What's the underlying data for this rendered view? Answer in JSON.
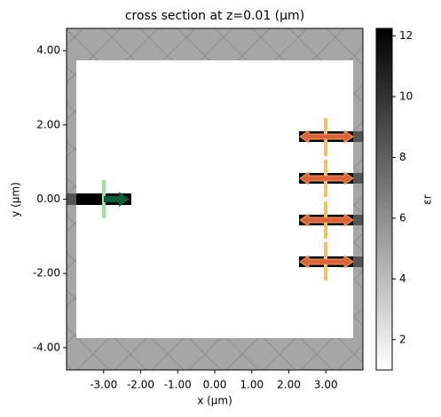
{
  "chart_data": {
    "type": "structure",
    "title": "cross section at z=0.01 (μm)",
    "xlabel": "x (μm)",
    "ylabel": "y (μm)",
    "xlim": [
      -4.0,
      4.0
    ],
    "ylim": [
      -4.6,
      4.6
    ],
    "xticks": [
      {
        "value": -3,
        "label": "-3.00"
      },
      {
        "value": -2,
        "label": "-2.00"
      },
      {
        "value": -1,
        "label": "-1.00"
      },
      {
        "value": 0,
        "label": "0.00"
      },
      {
        "value": 1,
        "label": "1.00"
      },
      {
        "value": 2,
        "label": "2.00"
      },
      {
        "value": 3,
        "label": "3.00"
      }
    ],
    "yticks": [
      {
        "value": -4,
        "label": "-4.00"
      },
      {
        "value": -2,
        "label": "-2.00"
      },
      {
        "value": 0,
        "label": "0.00"
      },
      {
        "value": 2,
        "label": "2.00"
      },
      {
        "value": 4,
        "label": "4.00"
      }
    ],
    "colorbar": {
      "label": "εr",
      "lim": [
        1,
        12.25
      ],
      "ticks": [
        2,
        4,
        6,
        8,
        10,
        12
      ]
    }
  }
}
